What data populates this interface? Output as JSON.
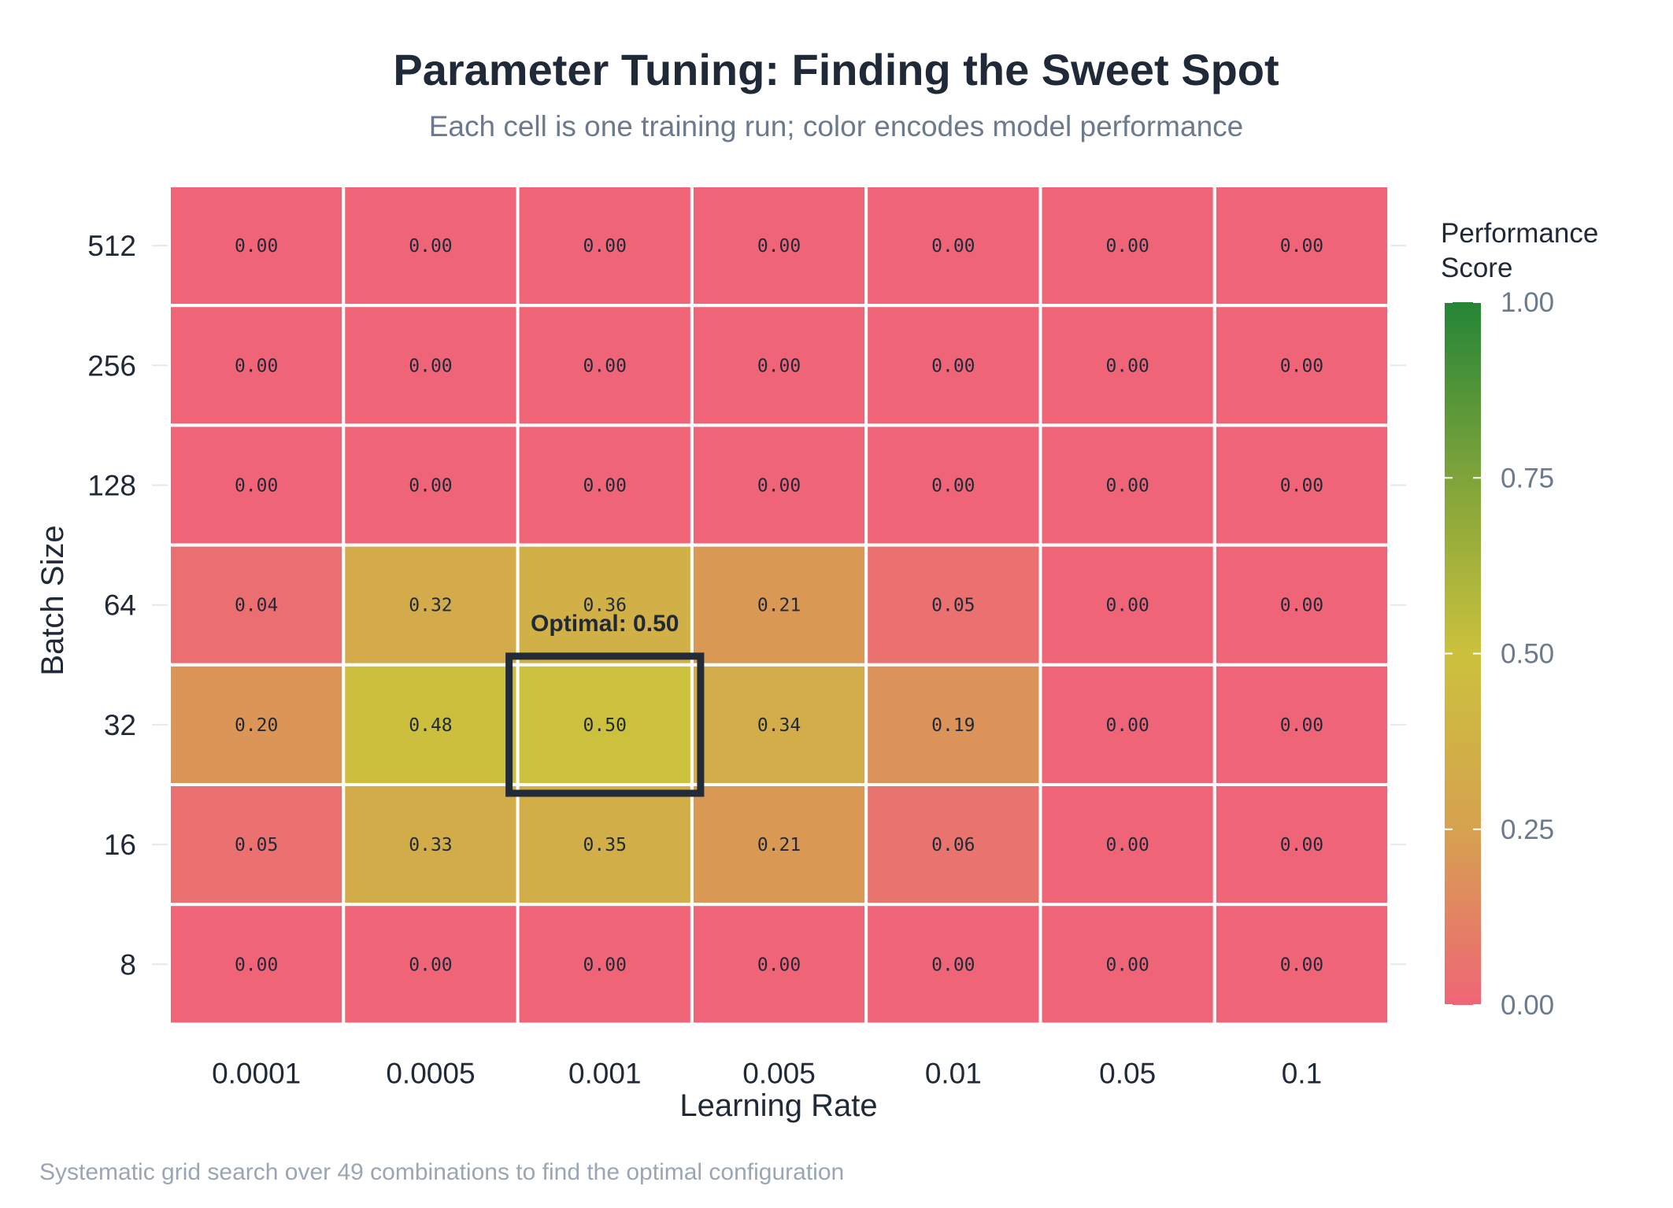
{
  "chart_data": {
    "type": "heatmap",
    "title": "Parameter Tuning: Finding the Sweet Spot",
    "subtitle": "Each cell is one training run; color encodes model performance",
    "xlabel": "Learning Rate",
    "ylabel": "Batch Size",
    "x_categories": [
      "0.0001",
      "0.0005",
      "0.001",
      "0.005",
      "0.01",
      "0.05",
      "0.1"
    ],
    "y_categories": [
      "512",
      "256",
      "128",
      "64",
      "32",
      "16",
      "8"
    ],
    "values": [
      [
        0.0,
        0.0,
        0.0,
        0.0,
        0.0,
        0.0,
        0.0
      ],
      [
        0.0,
        0.0,
        0.0,
        0.0,
        0.0,
        0.0,
        0.0
      ],
      [
        0.0,
        0.0,
        0.0,
        0.0,
        0.0,
        0.0,
        0.0
      ],
      [
        0.04,
        0.32,
        0.36,
        0.21,
        0.05,
        0.0,
        0.0
      ],
      [
        0.2,
        0.48,
        0.5,
        0.34,
        0.19,
        0.0,
        0.0
      ],
      [
        0.05,
        0.33,
        0.35,
        0.21,
        0.06,
        0.0,
        0.0
      ],
      [
        0.0,
        0.0,
        0.0,
        0.0,
        0.0,
        0.0,
        0.0
      ]
    ],
    "highlight": {
      "row": 4,
      "col": 2,
      "label": "Optimal: 0.50"
    },
    "colorbar": {
      "title_lines": [
        "Performance",
        "Score"
      ],
      "range": [
        0,
        1
      ],
      "ticks": [
        "0.00",
        "0.25",
        "0.50",
        "0.75",
        "1.00"
      ],
      "colors": [
        "#ef6577",
        "#d6a24f",
        "#cbc13d",
        "#7fa43a",
        "#248536"
      ]
    },
    "caption": "Systematic grid search over 49 combinations to find the optimal configuration"
  }
}
